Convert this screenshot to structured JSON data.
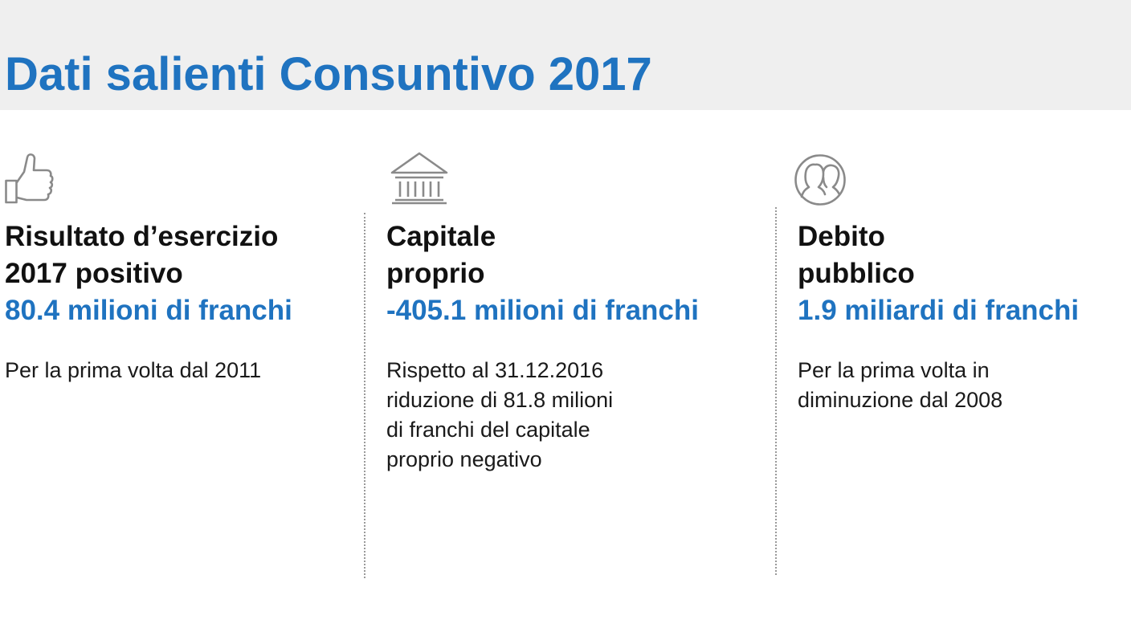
{
  "header": {
    "title": "Dati salienti Consuntivo 2017"
  },
  "columns": [
    {
      "icon": "thumbs-up-icon",
      "heading_lines": [
        "Risultato d’esercizio",
        "2017 positivo"
      ],
      "value": "80.4 milioni di franchi",
      "description_lines": [
        "Per la prima volta dal 2011"
      ]
    },
    {
      "icon": "bank-building-icon",
      "heading_lines": [
        "Capitale",
        "proprio"
      ],
      "value": "-405.1 milioni di franchi",
      "description_lines": [
        "Rispetto al 31.12.2016",
        "riduzione di 81.8 milioni",
        "di franchi del capitale",
        "proprio negativo"
      ]
    },
    {
      "icon": "people-circle-icon",
      "heading_lines": [
        "Debito",
        "pubblico"
      ],
      "value": "1.9 miliardi di franchi",
      "description_lines": [
        "Per la prima volta in",
        "diminuzione dal 2008"
      ]
    }
  ],
  "colors": {
    "accent": "#1f73c0",
    "header_background": "#efefef",
    "icon_gray": "#8a8a8a"
  }
}
